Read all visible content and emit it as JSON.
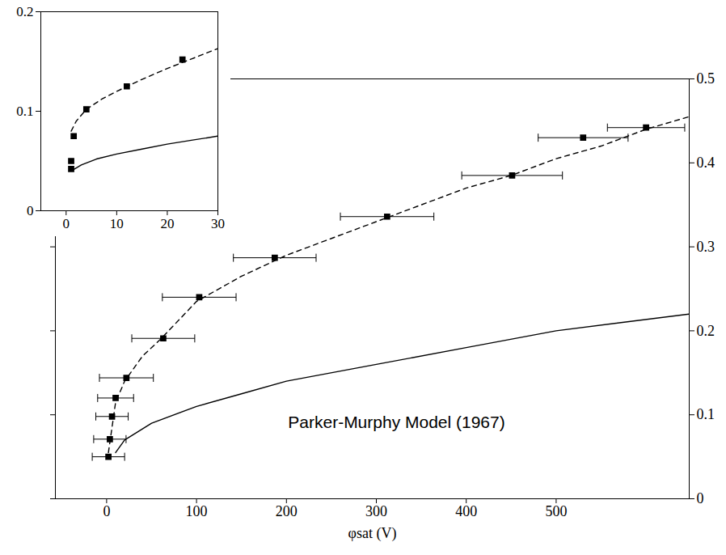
{
  "chart_data": [
    {
      "type": "scatter",
      "x_label": "φsat (V)",
      "xlim": [
        -57,
        648
      ],
      "xticks": [
        0,
        100,
        200,
        300,
        400,
        500
      ],
      "ylim": [
        0,
        0.5
      ],
      "yticks": [
        0,
        0.1,
        0.2,
        0.3,
        0.4,
        0.5
      ],
      "annotations": [
        "Parker-Murphy Model (1967)"
      ],
      "series": [
        {
          "type": "scatter",
          "color": "#000000",
          "marker": "square",
          "x": [
            2,
            3.6,
            6,
            10,
            22,
            63,
            103,
            187,
            312,
            451,
            530,
            600
          ],
          "values": [
            0.05,
            0.071,
            0.098,
            0.12,
            0.144,
            0.191,
            0.24,
            0.287,
            0.336,
            0.385,
            0.43,
            0.442
          ],
          "x_errors": [
            18,
            18,
            18,
            20,
            30,
            35,
            41,
            46,
            52,
            56,
            50,
            43
          ]
        },
        {
          "type": "line",
          "color": "#000000",
          "line_style": "dashed",
          "x": [
            2,
            10,
            20,
            40,
            60,
            100,
            150,
            200,
            250,
            300,
            350,
            400,
            450,
            500,
            550,
            600,
            648
          ],
          "values": [
            0.055,
            0.115,
            0.14,
            0.17,
            0.19,
            0.235,
            0.265,
            0.29,
            0.31,
            0.33,
            0.35,
            0.37,
            0.385,
            0.405,
            0.42,
            0.44,
            0.455
          ]
        },
        {
          "type": "line",
          "color": "#000000",
          "line_style": "solid",
          "x": [
            10,
            20,
            50,
            100,
            150,
            200,
            300,
            400,
            500,
            648
          ],
          "values": [
            0.055,
            0.07,
            0.09,
            0.11,
            0.125,
            0.14,
            0.16,
            0.18,
            0.2,
            0.22
          ]
        }
      ]
    },
    {
      "type": "scatter",
      "xlim": [
        -5,
        30
      ],
      "xticks": [
        0,
        10,
        20,
        30
      ],
      "ylim": [
        0,
        0.2
      ],
      "yticks": [
        0,
        0.1,
        0.2
      ],
      "series": [
        {
          "type": "scatter",
          "color": "#000000",
          "marker": "square",
          "x": [
            1,
            1,
            1.5,
            4,
            12,
            23
          ],
          "values": [
            0.042,
            0.05,
            0.075,
            0.102,
            0.125,
            0.152
          ]
        },
        {
          "type": "line",
          "color": "#000000",
          "line_style": "dashed",
          "x": [
            1,
            2,
            4,
            7,
            10,
            15,
            20,
            25,
            30
          ],
          "values": [
            0.08,
            0.09,
            0.102,
            0.112,
            0.12,
            0.132,
            0.143,
            0.153,
            0.163
          ]
        },
        {
          "type": "line",
          "color": "#000000",
          "line_style": "solid",
          "x": [
            1,
            3,
            6,
            10,
            15,
            20,
            25,
            30
          ],
          "values": [
            0.04,
            0.046,
            0.052,
            0.057,
            0.062,
            0.067,
            0.071,
            0.075
          ]
        }
      ]
    }
  ]
}
